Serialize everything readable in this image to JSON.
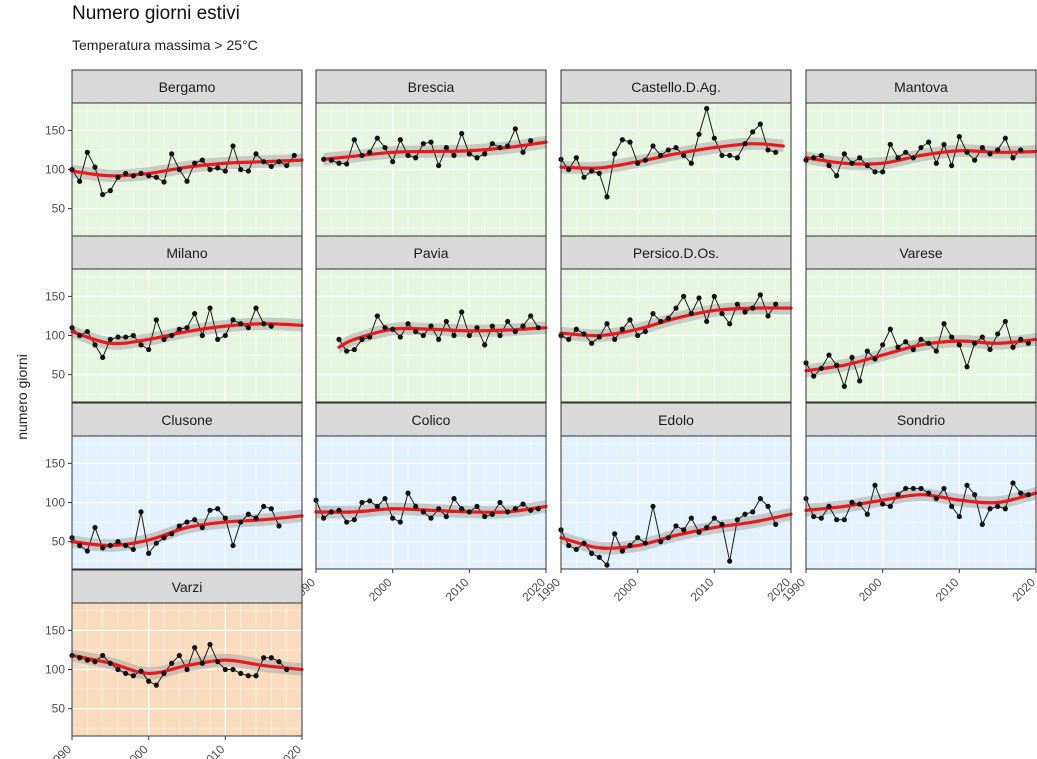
{
  "title": "Numero giorni estivi",
  "subtitle": "Temperatura massima > 25°C",
  "chart_data": {
    "type": "line",
    "layout": "facet-grid",
    "ylabel": "numero giorni",
    "xlabel": "",
    "xlim": [
      1990,
      2020
    ],
    "ylim": [
      15,
      185
    ],
    "x_ticks": [
      1990,
      2000,
      2010,
      2020
    ],
    "y_ticks": [
      50,
      100,
      150
    ],
    "grid": true,
    "smooth_color": "#e41a1c",
    "line_color": "#1a1a1a",
    "zone_colors": {
      "pianura": "#e6f5e0",
      "montagna": "#e2f1fb",
      "appennino": "#f9dcbd"
    },
    "panels": [
      {
        "name": "Bergamo",
        "zone": "pianura",
        "x_start": 1990,
        "values": [
          100,
          85,
          122,
          103,
          68,
          73,
          90,
          95,
          92,
          95,
          92,
          90,
          84,
          120,
          100,
          85,
          108,
          112,
          100,
          102,
          98,
          130,
          100,
          98,
          120,
          110,
          104,
          110,
          105,
          118
        ],
        "smooth": [
          [
            1990,
            98
          ],
          [
            1995,
            92
          ],
          [
            2000,
            95
          ],
          [
            2005,
            103
          ],
          [
            2010,
            108
          ],
          [
            2015,
            110
          ],
          [
            2020,
            112
          ]
        ]
      },
      {
        "name": "Brescia",
        "zone": "pianura",
        "x_start": 1991,
        "values": [
          113,
          112,
          108,
          107,
          138,
          118,
          122,
          140,
          128,
          110,
          138,
          118,
          115,
          133,
          135,
          105,
          128,
          118,
          146,
          120,
          115,
          120,
          133,
          128,
          130,
          152,
          122,
          137
        ],
        "smooth": [
          [
            1991,
            113
          ],
          [
            1995,
            117
          ],
          [
            2000,
            122
          ],
          [
            2005,
            123
          ],
          [
            2010,
            124
          ],
          [
            2015,
            128
          ],
          [
            2020,
            135
          ]
        ]
      },
      {
        "name": "Castello.D.Ag.",
        "zone": "pianura",
        "x_start": 1990,
        "values": [
          113,
          100,
          115,
          90,
          98,
          95,
          65,
          120,
          138,
          135,
          108,
          112,
          130,
          118,
          125,
          128,
          118,
          108,
          145,
          178,
          140,
          118,
          118,
          115,
          133,
          148,
          158,
          125,
          122
        ],
        "smooth": [
          [
            1990,
            103
          ],
          [
            1995,
            102
          ],
          [
            2000,
            110
          ],
          [
            2005,
            120
          ],
          [
            2010,
            128
          ],
          [
            2015,
            133
          ],
          [
            2019,
            130
          ]
        ]
      },
      {
        "name": "Mantova",
        "zone": "pianura",
        "x_start": 1990,
        "values": [
          112,
          115,
          118,
          105,
          92,
          120,
          108,
          115,
          105,
          97,
          97,
          132,
          115,
          122,
          115,
          128,
          135,
          108,
          132,
          105,
          142,
          122,
          112,
          128,
          120,
          125,
          140,
          115,
          125
        ],
        "smooth": [
          [
            1990,
            115
          ],
          [
            1995,
            108
          ],
          [
            2000,
            108
          ],
          [
            2005,
            118
          ],
          [
            2010,
            124
          ],
          [
            2015,
            122
          ],
          [
            2020,
            123
          ]
        ]
      },
      {
        "name": "Milano",
        "zone": "pianura",
        "x_start": 1990,
        "values": [
          110,
          100,
          105,
          88,
          72,
          95,
          98,
          98,
          100,
          88,
          82,
          120,
          95,
          100,
          108,
          110,
          128,
          100,
          135,
          95,
          100,
          120,
          115,
          110,
          135,
          115,
          112
        ],
        "smooth": [
          [
            1990,
            105
          ],
          [
            1995,
            90
          ],
          [
            2000,
            95
          ],
          [
            2005,
            105
          ],
          [
            2010,
            112
          ],
          [
            2015,
            115
          ],
          [
            2020,
            113
          ]
        ]
      },
      {
        "name": "Pavia",
        "zone": "pianura",
        "x_start": 1993,
        "values": [
          95,
          80,
          82,
          95,
          98,
          125,
          110,
          108,
          98,
          115,
          105,
          100,
          112,
          95,
          118,
          100,
          130,
          100,
          110,
          88,
          112,
          100,
          118,
          105,
          112,
          125,
          110
        ],
        "smooth": [
          [
            1993,
            85
          ],
          [
            1995,
            95
          ],
          [
            2000,
            108
          ],
          [
            2005,
            108
          ],
          [
            2010,
            106
          ],
          [
            2015,
            107
          ],
          [
            2020,
            110
          ]
        ]
      },
      {
        "name": "Persico.D.Os.",
        "zone": "pianura",
        "x_start": 1990,
        "values": [
          100,
          95,
          108,
          102,
          90,
          98,
          115,
          95,
          108,
          120,
          100,
          105,
          128,
          118,
          122,
          135,
          150,
          128,
          148,
          118,
          150,
          128,
          115,
          140,
          130,
          135,
          152,
          125,
          140
        ],
        "smooth": [
          [
            1990,
            103
          ],
          [
            1995,
            100
          ],
          [
            2000,
            108
          ],
          [
            2005,
            122
          ],
          [
            2010,
            132
          ],
          [
            2015,
            135
          ],
          [
            2020,
            135
          ]
        ]
      },
      {
        "name": "Varese",
        "zone": "pianura",
        "x_start": 1990,
        "values": [
          65,
          48,
          58,
          75,
          62,
          35,
          72,
          42,
          80,
          70,
          88,
          108,
          85,
          92,
          82,
          95,
          90,
          80,
          115,
          98,
          88,
          60,
          90,
          98,
          82,
          102,
          118,
          85,
          95,
          90
        ],
        "smooth": [
          [
            1990,
            55
          ],
          [
            1995,
            62
          ],
          [
            2000,
            75
          ],
          [
            2005,
            88
          ],
          [
            2010,
            93
          ],
          [
            2015,
            90
          ],
          [
            2020,
            95
          ]
        ]
      },
      {
        "name": "Clusone",
        "zone": "montagna",
        "x_start": 1990,
        "values": [
          55,
          45,
          38,
          68,
          42,
          45,
          50,
          45,
          40,
          88,
          35,
          48,
          55,
          60,
          70,
          75,
          78,
          68,
          90,
          92,
          80,
          45,
          75,
          85,
          80,
          95,
          92,
          70
        ],
        "smooth": [
          [
            1990,
            50
          ],
          [
            1995,
            45
          ],
          [
            2000,
            52
          ],
          [
            2005,
            68
          ],
          [
            2010,
            75
          ],
          [
            2015,
            78
          ],
          [
            2020,
            83
          ]
        ]
      },
      {
        "name": "Colico",
        "zone": "montagna",
        "x_start": 1990,
        "values": [
          103,
          80,
          88,
          90,
          75,
          78,
          100,
          102,
          95,
          105,
          80,
          75,
          112,
          95,
          88,
          80,
          92,
          82,
          105,
          92,
          88,
          95,
          82,
          85,
          100,
          88,
          92,
          98,
          90,
          92
        ],
        "smooth": [
          [
            1990,
            88
          ],
          [
            1995,
            88
          ],
          [
            2000,
            92
          ],
          [
            2005,
            90
          ],
          [
            2010,
            88
          ],
          [
            2015,
            88
          ],
          [
            2020,
            95
          ]
        ]
      },
      {
        "name": "Edolo",
        "zone": "montagna",
        "x_start": 1990,
        "values": [
          65,
          45,
          40,
          48,
          35,
          30,
          20,
          60,
          38,
          45,
          55,
          48,
          95,
          50,
          55,
          70,
          65,
          80,
          62,
          68,
          80,
          72,
          25,
          78,
          85,
          88,
          105,
          95,
          72
        ],
        "smooth": [
          [
            1990,
            55
          ],
          [
            1995,
            42
          ],
          [
            2000,
            45
          ],
          [
            2005,
            58
          ],
          [
            2010,
            68
          ],
          [
            2015,
            75
          ],
          [
            2020,
            85
          ]
        ]
      },
      {
        "name": "Sondrio",
        "zone": "montagna",
        "x_start": 1990,
        "values": [
          105,
          82,
          80,
          95,
          78,
          78,
          100,
          98,
          85,
          122,
          98,
          95,
          110,
          118,
          118,
          118,
          112,
          105,
          118,
          95,
          82,
          122,
          110,
          72,
          92,
          95,
          92,
          125,
          112,
          110
        ],
        "smooth": [
          [
            1990,
            90
          ],
          [
            1995,
            95
          ],
          [
            2000,
            103
          ],
          [
            2005,
            110
          ],
          [
            2010,
            103
          ],
          [
            2015,
            100
          ],
          [
            2020,
            112
          ]
        ]
      },
      {
        "name": "Varzi",
        "zone": "appennino",
        "x_start": 1990,
        "values": [
          118,
          115,
          112,
          110,
          118,
          108,
          100,
          95,
          92,
          98,
          85,
          80,
          95,
          108,
          118,
          100,
          128,
          108,
          132,
          110,
          100,
          100,
          95,
          92,
          92,
          115,
          115,
          110,
          100
        ],
        "smooth": [
          [
            1990,
            118
          ],
          [
            1995,
            108
          ],
          [
            2000,
            95
          ],
          [
            2005,
            105
          ],
          [
            2010,
            112
          ],
          [
            2015,
            105
          ],
          [
            2020,
            100
          ]
        ]
      }
    ]
  }
}
